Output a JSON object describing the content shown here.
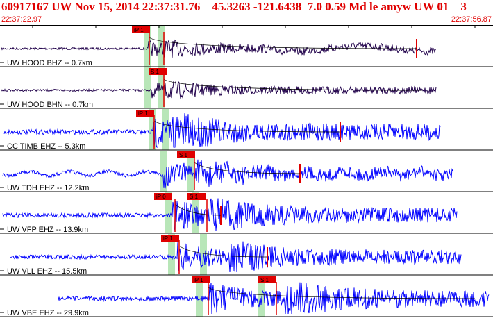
{
  "header": {
    "title": "60917167 UW Nov 15, 2014 22:37:31.76    45.3263 -121.6438  7.0 0.59 Md le amyw UW 01    3",
    "start_time": "22:37:22.97",
    "end_time": "22:37:56.87"
  },
  "colors": {
    "header_text": "#e00000",
    "trace_short_period": "#0000ff",
    "trace_broadband": "#20004a",
    "pick_marker": "#e00000",
    "window_shade": "#b8e6b8",
    "travel_time_curve": "#000000",
    "panel_border": "#000000"
  },
  "traces": [
    {
      "label": "UW HOOD BHZ -- 0.7km",
      "color": "#20004a",
      "picks": [
        {
          "label": "iP 1"
        },
        {
          "label": "S 1"
        }
      ],
      "amp": 9
    },
    {
      "label": "UW HOOD BHN -- 0.7km",
      "color": "#20004a",
      "picks": [
        {
          "label": "S 1"
        }
      ],
      "amp": 9
    },
    {
      "label": "CC TIMB EHZ -- 5.3km",
      "color": "#0000ff",
      "picks": [
        {
          "label": "iP 1"
        }
      ],
      "amp": 14
    },
    {
      "label": "UW TDH EHZ -- 12.2km",
      "color": "#0000ff",
      "picks": [
        {
          "label": "S 1"
        }
      ],
      "amp": 10
    },
    {
      "label": "UW VFP EHZ -- 13.9km",
      "color": "#0000ff",
      "picks": [
        {
          "label": "iP 0"
        },
        {
          "label": "S 1"
        }
      ],
      "amp": 13
    },
    {
      "label": "UW VLL EHZ -- 15.5km",
      "color": "#0000ff",
      "picks": [
        {
          "label": "iP 1"
        }
      ],
      "amp": 12
    },
    {
      "label": "UW VBE EHZ -- 29.9km",
      "color": "#0000ff",
      "picks": [
        {
          "label": "iP 1"
        },
        {
          "label": "S 1"
        }
      ],
      "amp": 14
    }
  ]
}
